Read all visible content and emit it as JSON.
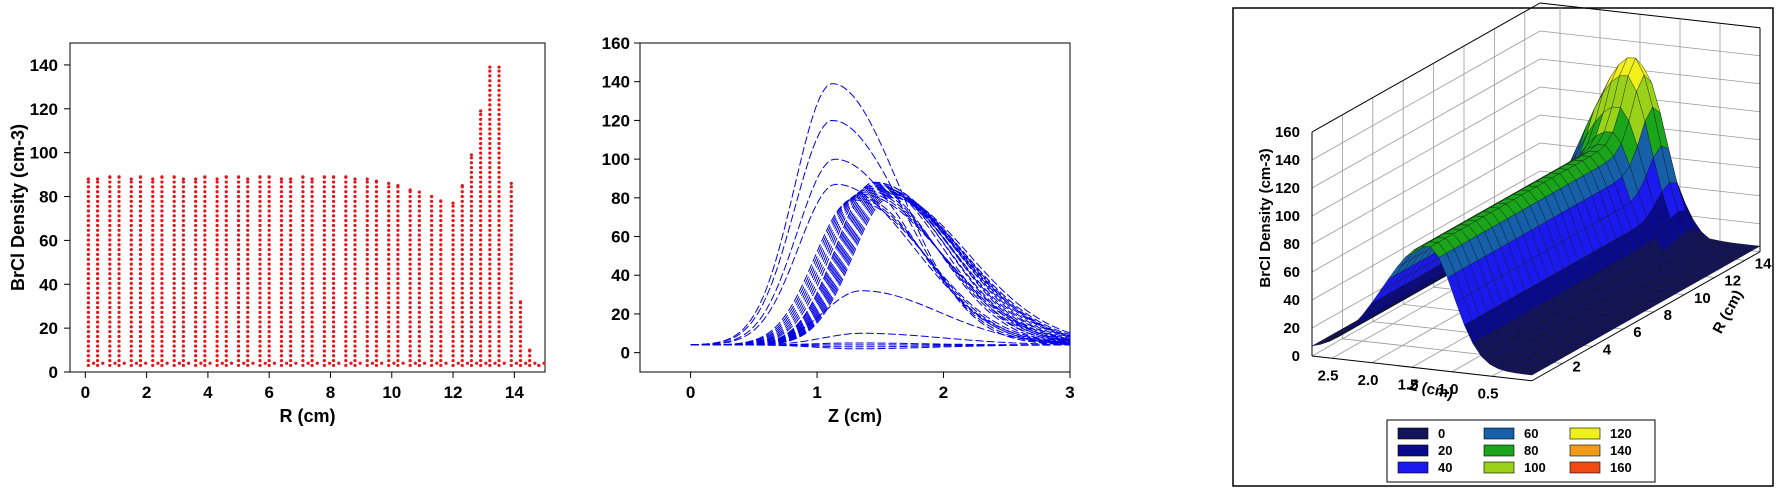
{
  "chart_data": [
    {
      "type": "scatter",
      "xlabel": "R (cm)",
      "ylabel": "BrCl Density (cm-3)",
      "xlim": [
        -0.5,
        15
      ],
      "ylim": [
        0,
        150
      ],
      "xticks": [
        0,
        2,
        4,
        6,
        8,
        10,
        12,
        14
      ],
      "yticks": [
        0,
        20,
        40,
        60,
        80,
        100,
        120,
        140
      ],
      "grid": false,
      "color": "#e8141b",
      "note_series": "vertical dotted columns of points at each R value, from ~3 up to peak",
      "series": [
        {
          "r": [
            0.1,
            0.4,
            0.8,
            1.1,
            1.5,
            1.8,
            2.2,
            2.5,
            2.9,
            3.2,
            3.6,
            3.9,
            4.3,
            4.6,
            5.0,
            5.3,
            5.7,
            6.0,
            6.4,
            6.7,
            7.1,
            7.4,
            7.8,
            8.1,
            8.5,
            8.8,
            9.2,
            9.5,
            9.9,
            10.2,
            10.6,
            10.9,
            11.3,
            11.6,
            12.0,
            12.3,
            12.6,
            12.9,
            13.2,
            13.5,
            13.9,
            14.2,
            14.5,
            14.8
          ],
          "peak": [
            88,
            88,
            89,
            89,
            88,
            89,
            88,
            89,
            89,
            88,
            88,
            89,
            88,
            89,
            89,
            88,
            89,
            89,
            88,
            88,
            89,
            88,
            89,
            89,
            89,
            88,
            88,
            87,
            86,
            85,
            83,
            82,
            80,
            78,
            77,
            85,
            99,
            119,
            139,
            139,
            86,
            32,
            10,
            3
          ]
        }
      ]
    },
    {
      "type": "line",
      "xlabel": "Z (cm)",
      "ylabel": "BrCl Density (cm-3)",
      "xlim": [
        -0.4,
        3
      ],
      "ylim": [
        -10,
        160
      ],
      "xticks": [
        0,
        1,
        2,
        3
      ],
      "yticks": [
        0,
        20,
        40,
        60,
        80,
        100,
        120,
        140,
        160
      ],
      "grid": false,
      "color": "#0000e0",
      "curves_peak_values": [
        139,
        120,
        100,
        87,
        88,
        86,
        85,
        84,
        83,
        82,
        81,
        80,
        79,
        32,
        10,
        5,
        4,
        3,
        2
      ],
      "curves_peak_positions_z": [
        1.12,
        1.12,
        1.14,
        1.15,
        1.45,
        1.42,
        1.4,
        1.38,
        1.36,
        1.34,
        1.32,
        1.3,
        1.28,
        1.35,
        1.35,
        1.3,
        1.3,
        1.3,
        1.3
      ]
    },
    {
      "type": "surface3d",
      "zlabel": "BrCl Density (cm-3)",
      "xlabel": "Z (cm)",
      "ylabel": "R (cm)",
      "z_ticks": [
        0,
        20,
        40,
        60,
        80,
        100,
        120,
        140,
        160
      ],
      "x_ticks": [
        2.5,
        2.0,
        1.5,
        1.0,
        0.5
      ],
      "y_ticks": [
        2,
        4,
        6,
        8,
        10,
        12,
        14
      ],
      "legend": [
        {
          "label": "0",
          "color": "#14145a"
        },
        {
          "label": "20",
          "color": "#0a0a8c"
        },
        {
          "label": "40",
          "color": "#1a1aee"
        },
        {
          "label": "60",
          "color": "#1560a8"
        },
        {
          "label": "80",
          "color": "#1aa51a"
        },
        {
          "label": "100",
          "color": "#9ad21a"
        },
        {
          "label": "120",
          "color": "#f2f01a"
        },
        {
          "label": "140",
          "color": "#f29a1a"
        },
        {
          "label": "160",
          "color": "#f04a10"
        }
      ]
    }
  ]
}
